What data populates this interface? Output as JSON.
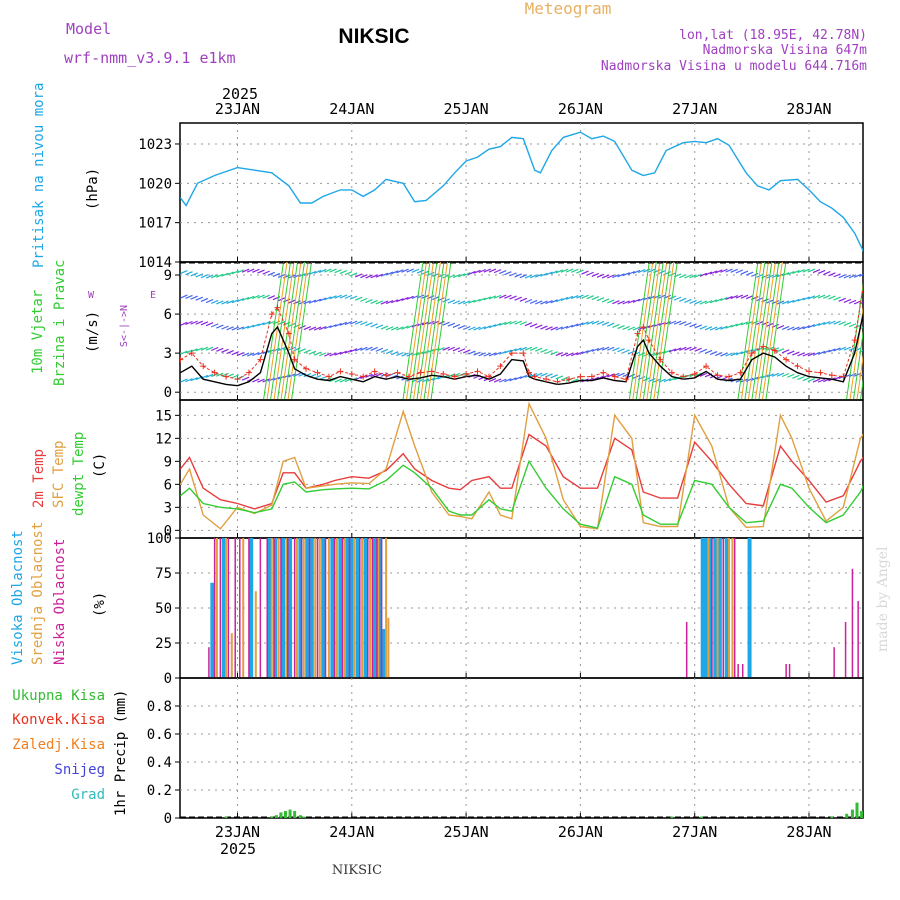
{
  "header": {
    "model_label": "Model",
    "model_name": "wrf-nmm_v3.9.1  e1km",
    "station": "NIKSIC",
    "chart_title": "Meteogram",
    "lonlat": "lon,lat (18.95E, 42.78N)",
    "elevation": "Nadmorska Visina 647m",
    "model_elevation": "Nadmorska Visina u modelu 644.716m",
    "year_top": "2025",
    "year_bottom": "2025",
    "footer_station": "NIKSIC",
    "watermark": "made by Angel"
  },
  "colors": {
    "pressure": "#1ea7e6",
    "wind_speed": "#000000",
    "wind_gust": "#e8301e",
    "temp2m": "#e83c3c",
    "sfc_temp": "#e0a040",
    "dewpt": "#33cc33",
    "high_cloud": "#1ea7e6",
    "mid_cloud": "#e0a040",
    "low_cloud": "#cc2299",
    "total_precip": "#33bb33",
    "conv_precip": "#e8301e",
    "frozen_precip": "#f08020",
    "snow": "#4444dd",
    "graupel": "#33bbbb",
    "label_purple": "#a040c0",
    "title_orange": "#e8b060"
  },
  "chart_data": [
    {
      "type": "line",
      "panel": "pressure",
      "ylabel_color_text": "Pritisak na nivou mora",
      "ylabel_unit": "(hPa)",
      "x_tick_labels": [
        "23JAN",
        "24JAN",
        "25JAN",
        "26JAN",
        "27JAN",
        "28JAN"
      ],
      "x_days": [
        0,
        1,
        2,
        3,
        4,
        5
      ],
      "x_range_days": [
        -0.5,
        5.5
      ],
      "ylim": [
        1014,
        1024.6
      ],
      "yticks": [
        1014,
        1017,
        1020,
        1023
      ],
      "grid": true,
      "series": [
        {
          "x": [
            -0.5,
            -0.45,
            -0.35,
            -0.2,
            -0.1,
            0,
            0.15,
            0.3,
            0.45,
            0.55,
            0.65,
            0.75,
            0.9,
            1,
            1.1,
            1.2,
            1.3,
            1.45,
            1.55,
            1.65,
            1.8,
            1.9,
            2,
            2.1,
            2.2,
            2.3,
            2.4,
            2.5,
            2.6,
            2.65,
            2.75,
            2.85,
            3,
            3.1,
            3.2,
            3.3,
            3.45,
            3.55,
            3.65,
            3.75,
            3.9,
            4,
            4.1,
            4.2,
            4.3,
            4.45,
            4.55,
            4.65,
            4.75,
            4.9,
            5,
            5.1,
            5.2,
            5.3,
            5.4,
            5.5
          ],
          "values": [
            1018.9,
            1018.3,
            1020.0,
            1020.6,
            1020.9,
            1021.2,
            1021.0,
            1020.8,
            1019.8,
            1018.5,
            1018.5,
            1019.0,
            1019.5,
            1019.5,
            1019.0,
            1019.5,
            1020.3,
            1020.0,
            1018.6,
            1018.7,
            1019.8,
            1020.8,
            1021.7,
            1022.0,
            1022.6,
            1022.8,
            1023.5,
            1023.4,
            1021.0,
            1020.8,
            1022.5,
            1023.5,
            1023.9,
            1023.4,
            1023.6,
            1023.2,
            1021.0,
            1020.6,
            1020.8,
            1022.5,
            1023.1,
            1023.2,
            1023.1,
            1023.4,
            1022.9,
            1020.8,
            1019.8,
            1019.5,
            1020.2,
            1020.3,
            1019.5,
            1018.6,
            1018.1,
            1017.4,
            1016.2,
            1014.4
          ]
        }
      ]
    },
    {
      "type": "line",
      "panel": "wind",
      "ylabel_color_text": "10m Vjetar\nBrzina i Pravac",
      "ylabel_unit": "(m/s)",
      "direction_legend": [
        "N",
        "W <-|-> E",
        "S"
      ],
      "ylim": [
        -0.6,
        10
      ],
      "yticks": [
        0,
        3,
        6,
        9
      ],
      "grid": true,
      "series": [
        {
          "name": "speed",
          "x": [
            -0.5,
            -0.4,
            -0.3,
            -0.2,
            -0.1,
            0,
            0.1,
            0.2,
            0.3,
            0.35,
            0.45,
            0.5,
            0.6,
            0.7,
            0.8,
            0.9,
            1,
            1.1,
            1.2,
            1.3,
            1.4,
            1.5,
            1.6,
            1.7,
            1.8,
            1.9,
            2,
            2.1,
            2.2,
            2.3,
            2.4,
            2.5,
            2.55,
            2.6,
            2.7,
            2.8,
            2.9,
            3,
            3.1,
            3.2,
            3.3,
            3.4,
            3.5,
            3.55,
            3.6,
            3.7,
            3.8,
            3.9,
            4,
            4.1,
            4.2,
            4.3,
            4.4,
            4.5,
            4.6,
            4.7,
            4.8,
            4.9,
            5,
            5.1,
            5.2,
            5.3,
            5.4,
            5.5
          ],
          "values": [
            1.5,
            2.0,
            1.0,
            0.8,
            0.6,
            0.5,
            0.8,
            1.5,
            4.5,
            5.0,
            3.0,
            1.8,
            1.3,
            1.0,
            0.9,
            1.2,
            1.0,
            0.8,
            1.2,
            1.0,
            1.2,
            1.0,
            1.1,
            1.3,
            1.2,
            1.0,
            1.2,
            1.3,
            1.0,
            1.4,
            2.5,
            2.4,
            1.2,
            1.0,
            0.8,
            0.6,
            0.7,
            0.9,
            0.9,
            1.1,
            0.9,
            0.8,
            3.5,
            4.0,
            3.0,
            2.0,
            1.2,
            1.0,
            1.1,
            1.6,
            1.0,
            0.9,
            1.0,
            2.5,
            3.0,
            2.7,
            2.0,
            1.5,
            1.2,
            1.1,
            1.0,
            0.8,
            3.0,
            7.0
          ]
        },
        {
          "name": "gust",
          "x": [
            -0.5,
            -0.4,
            -0.3,
            -0.2,
            -0.1,
            0,
            0.1,
            0.2,
            0.3,
            0.35,
            0.45,
            0.5,
            0.6,
            0.7,
            0.8,
            0.9,
            1,
            1.1,
            1.2,
            1.3,
            1.4,
            1.5,
            1.6,
            1.7,
            1.8,
            1.9,
            2,
            2.1,
            2.2,
            2.3,
            2.4,
            2.5,
            2.55,
            2.6,
            2.7,
            2.8,
            2.9,
            3,
            3.1,
            3.2,
            3.3,
            3.4,
            3.5,
            3.55,
            3.6,
            3.7,
            3.8,
            3.9,
            4,
            4.1,
            4.2,
            4.3,
            4.4,
            4.5,
            4.6,
            4.7,
            4.8,
            4.9,
            5,
            5.1,
            5.2,
            5.3,
            5.4,
            5.5
          ],
          "values": [
            2.5,
            3.0,
            2.0,
            1.5,
            1.2,
            1.0,
            1.5,
            2.5,
            6.0,
            6.5,
            4.5,
            2.5,
            1.8,
            1.5,
            1.2,
            1.6,
            1.4,
            1.2,
            1.6,
            1.3,
            1.5,
            1.2,
            1.5,
            1.6,
            1.4,
            1.2,
            1.4,
            1.6,
            1.2,
            2.0,
            3.0,
            3.0,
            1.5,
            1.2,
            1.0,
            0.8,
            1.0,
            1.2,
            1.2,
            1.5,
            1.2,
            1.0,
            4.5,
            5.0,
            4.0,
            2.5,
            1.5,
            1.2,
            1.4,
            2.0,
            1.3,
            1.2,
            1.5,
            3.0,
            3.5,
            3.2,
            2.5,
            2.0,
            1.6,
            1.5,
            1.3,
            1.2,
            4.0,
            9.5
          ]
        }
      ]
    },
    {
      "type": "line",
      "panel": "temperature",
      "ylabel_color_text": [
        "2m Temp",
        "SFC Temp",
        "dewpt Temp"
      ],
      "ylabel_unit": "(C)",
      "ylim": [
        -1,
        17
      ],
      "yticks": [
        0,
        3,
        6,
        9,
        12,
        15
      ],
      "grid": true,
      "series": [
        {
          "name": "2m Temp",
          "x": [
            -0.5,
            -0.42,
            -0.3,
            -0.15,
            0,
            0.15,
            0.3,
            0.4,
            0.5,
            0.6,
            0.75,
            0.85,
            1,
            1.15,
            1.3,
            1.45,
            1.55,
            1.7,
            1.85,
            1.95,
            2.05,
            2.2,
            2.3,
            2.4,
            2.55,
            2.7,
            2.85,
            3,
            3.15,
            3.3,
            3.45,
            3.55,
            3.7,
            3.85,
            4,
            4.15,
            4.3,
            4.45,
            4.6,
            4.75,
            4.85,
            5,
            5.15,
            5.3,
            5.45,
            5.5
          ],
          "values": [
            8.0,
            9.5,
            5.5,
            4.0,
            3.5,
            2.8,
            3.5,
            7.5,
            7.5,
            5.5,
            6.0,
            6.5,
            7.0,
            6.8,
            7.8,
            10.0,
            8.0,
            6.5,
            5.5,
            5.3,
            6.5,
            7.0,
            5.5,
            5.5,
            12.5,
            11.0,
            7.0,
            5.5,
            5.5,
            12.0,
            10.5,
            5.0,
            4.2,
            4.2,
            11.5,
            9.0,
            6.0,
            3.5,
            3.2,
            11.0,
            9.0,
            6.5,
            3.7,
            4.5,
            9.0,
            10.0
          ]
        },
        {
          "name": "SFC Temp",
          "x": [
            -0.5,
            -0.42,
            -0.3,
            -0.15,
            0,
            0.15,
            0.3,
            0.4,
            0.5,
            0.6,
            0.75,
            0.85,
            1,
            1.15,
            1.3,
            1.45,
            1.55,
            1.7,
            1.85,
            1.95,
            2.05,
            2.2,
            2.3,
            2.4,
            2.55,
            2.7,
            2.85,
            3,
            3.15,
            3.3,
            3.45,
            3.55,
            3.7,
            3.85,
            4,
            4.15,
            4.3,
            4.45,
            4.6,
            4.75,
            4.85,
            5,
            5.15,
            5.3,
            5.45,
            5.5
          ],
          "values": [
            6.0,
            8.0,
            2.0,
            0.2,
            3.0,
            2.2,
            3.3,
            9.0,
            9.5,
            5.5,
            5.8,
            6.0,
            6.2,
            6.1,
            8.0,
            15.5,
            11.0,
            5.0,
            2.0,
            1.8,
            1.5,
            5.0,
            2.0,
            1.5,
            16.5,
            12.0,
            4.0,
            0.5,
            0.2,
            15.0,
            12.0,
            1.0,
            0.5,
            0.5,
            15.0,
            11.0,
            3.0,
            0.4,
            0.5,
            15.0,
            12.0,
            5.5,
            1.2,
            3.0,
            12.0,
            13.0
          ]
        },
        {
          "name": "dewpt Temp",
          "x": [
            -0.5,
            -0.42,
            -0.3,
            -0.15,
            0,
            0.15,
            0.3,
            0.4,
            0.5,
            0.6,
            0.75,
            0.85,
            1,
            1.15,
            1.3,
            1.45,
            1.55,
            1.7,
            1.85,
            1.95,
            2.05,
            2.2,
            2.3,
            2.4,
            2.55,
            2.7,
            2.85,
            3,
            3.15,
            3.3,
            3.45,
            3.55,
            3.7,
            3.85,
            4,
            4.15,
            4.3,
            4.45,
            4.6,
            4.75,
            4.85,
            5,
            5.15,
            5.3,
            5.45,
            5.5
          ],
          "values": [
            4.5,
            5.5,
            3.5,
            3.0,
            2.8,
            2.3,
            2.8,
            6.0,
            6.3,
            5.0,
            5.3,
            5.4,
            5.5,
            5.4,
            6.5,
            8.5,
            7.5,
            5.5,
            2.5,
            2.0,
            2.0,
            4.0,
            2.8,
            2.5,
            9.0,
            5.5,
            2.8,
            0.8,
            0.3,
            7.0,
            6.0,
            2.0,
            0.8,
            0.8,
            6.5,
            6.0,
            3.0,
            1.0,
            1.2,
            6.0,
            5.5,
            3.0,
            1.0,
            2.0,
            5.0,
            6.5
          ]
        }
      ]
    },
    {
      "type": "bar",
      "panel": "cloud",
      "ylabel_color_text": [
        "Visoka Oblacnost",
        "Srednja Oblacnost",
        "Niska Oblacnost"
      ],
      "ylabel_unit": "(%)",
      "ylim": [
        0,
        100
      ],
      "yticks": [
        0,
        25,
        50,
        75,
        100
      ],
      "grid": true,
      "series": [
        {
          "name": "Visoka Oblacnost",
          "x": [
            -0.22,
            -0.12,
            0.12,
            0.28,
            0.33,
            0.4,
            0.46,
            0.55,
            0.61,
            0.65,
            0.75,
            0.83,
            0.9,
            0.96,
            1.0,
            1.05,
            1.12,
            1.2,
            1.25,
            1.28,
            4.07,
            4.1,
            4.14,
            4.18,
            4.22,
            4.28,
            4.48,
            5.49
          ],
          "values": [
            68,
            100,
            100,
            100,
            100,
            100,
            100,
            100,
            100,
            100,
            100,
            100,
            100,
            100,
            100,
            100,
            100,
            100,
            100,
            35,
            100,
            100,
            100,
            100,
            100,
            100,
            100,
            100
          ]
        },
        {
          "name": "Srednja Oblacnost",
          "x": [
            -0.18,
            -0.1,
            -0.05,
            0.05,
            0.16,
            0.3,
            0.36,
            0.43,
            0.52,
            0.58,
            0.68,
            0.72,
            0.8,
            0.87,
            0.94,
            1.02,
            1.09,
            1.16,
            1.23,
            1.3,
            1.32,
            4.12,
            4.2,
            4.3,
            4.33
          ],
          "values": [
            100,
            100,
            32,
            100,
            62,
            100,
            100,
            100,
            100,
            100,
            100,
            100,
            100,
            100,
            100,
            100,
            100,
            100,
            100,
            100,
            43,
            100,
            100,
            100,
            100
          ]
        },
        {
          "name": "Niska Oblacnost",
          "x": [
            -0.25,
            -0.2,
            -0.15,
            -0.08,
            -0.02,
            0.02,
            0.1,
            0.2,
            0.26,
            0.32,
            0.38,
            0.44,
            0.5,
            0.56,
            0.63,
            0.7,
            0.77,
            0.85,
            0.92,
            0.98,
            1.07,
            1.14,
            1.18,
            1.22,
            1.26,
            3.93,
            4.15,
            4.25,
            4.35,
            4.38,
            4.42,
            4.8,
            4.83,
            5.22,
            5.32,
            5.38,
            5.43
          ],
          "values": [
            22,
            100,
            100,
            100,
            100,
            100,
            100,
            100,
            100,
            100,
            100,
            100,
            100,
            100,
            100,
            100,
            100,
            100,
            100,
            100,
            100,
            100,
            100,
            100,
            100,
            40,
            100,
            100,
            100,
            10,
            10,
            10,
            10,
            22,
            40,
            78,
            55
          ]
        }
      ]
    },
    {
      "type": "bar",
      "panel": "precip",
      "ylabel_unit": "1hr Precip (mm)",
      "legend": [
        "Ukupna Kisa",
        "Konvek.Kisa",
        "Zaledj.Kisa",
        "Snijeg",
        "Grad"
      ],
      "ylim": [
        0,
        1.0
      ],
      "yticks": [
        0,
        0.2,
        0.4,
        0.6,
        0.8
      ],
      "grid": true,
      "series": [
        {
          "name": "Ukupna Kisa",
          "x": [
            -0.1,
            0.3,
            0.34,
            0.38,
            0.42,
            0.46,
            0.5,
            0.55,
            0.58,
            3.8,
            4.06,
            5.2,
            5.33,
            5.38,
            5.42,
            5.46,
            5.5
          ],
          "values": [
            0.01,
            0.01,
            0.02,
            0.04,
            0.05,
            0.06,
            0.05,
            0.02,
            0.01,
            0.01,
            0.01,
            0.01,
            0.03,
            0.06,
            0.11,
            0.05,
            0.04
          ]
        }
      ]
    }
  ]
}
